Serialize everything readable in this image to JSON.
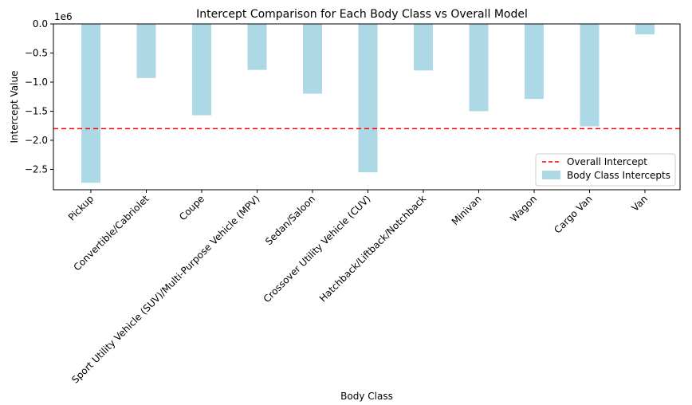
{
  "chart_data": {
    "type": "bar",
    "title": "Intercept Comparison for Each Body Class vs Overall Model",
    "xlabel": "Body Class",
    "ylabel": "Intercept Value",
    "y_scale_label": "1e6",
    "y_multiplier": 1000000,
    "ylim": [
      -2.85,
      0.0
    ],
    "yticks": [
      0.0,
      -0.5,
      -1.0,
      -1.5,
      -2.0,
      -2.5
    ],
    "ytick_labels": [
      "0.0",
      "−0.5",
      "−1.0",
      "−1.5",
      "−2.0",
      "−2.5"
    ],
    "categories": [
      "Pickup",
      "Convertible/Cabriolet",
      "Coupe",
      "Sport Utility Vehicle (SUV)/Multi-Purpose Vehicle (MPV)",
      "Sedan/Saloon",
      "Crossover Utility Vehicle (CUV)",
      "Hatchback/Liftback/Notchback",
      "Minivan",
      "Wagon",
      "Cargo Van",
      "Van"
    ],
    "series": [
      {
        "name": "Body Class Intercepts",
        "color": "#add8e6",
        "values": [
          -2.73,
          -0.93,
          -1.57,
          -0.79,
          -1.2,
          -2.55,
          -0.8,
          -1.5,
          -1.29,
          -1.76,
          -0.18
        ]
      }
    ],
    "reference_line": {
      "name": "Overall Intercept",
      "value": -1.8,
      "color": "#ff0000",
      "style": "dashed"
    },
    "legend": {
      "placement": "lower-right",
      "entries": [
        "Overall Intercept",
        "Body Class Intercepts"
      ]
    },
    "grid": false
  }
}
